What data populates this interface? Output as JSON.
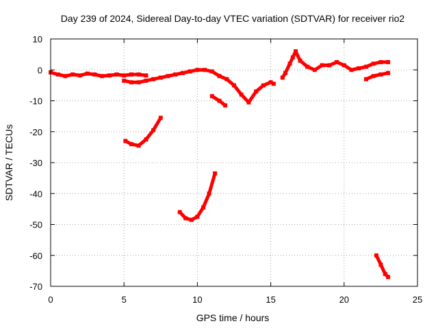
{
  "chart_data": {
    "type": "scatter",
    "title": "Day 239 of 2024, Sidereal Day-to-day VTEC variation (SDTVAR) for receiver rio2",
    "xlabel": "GPS time / hours",
    "ylabel": "SDTVAR / TECUs",
    "xlim": [
      0,
      25
    ],
    "ylim": [
      -70,
      10
    ],
    "xticks": [
      0,
      5,
      10,
      15,
      20,
      25
    ],
    "yticks": [
      10,
      0,
      -10,
      -20,
      -30,
      -40,
      -50,
      -60,
      -70
    ],
    "grid": true,
    "color": "#ff0000",
    "series": [
      {
        "name": "seg-main-1",
        "points": [
          [
            0,
            -0.8
          ],
          [
            0.5,
            -1.5
          ],
          [
            1,
            -2
          ],
          [
            1.5,
            -1.5
          ],
          [
            2,
            -1.8
          ],
          [
            2.5,
            -1.2
          ],
          [
            3,
            -1.5
          ],
          [
            3.5,
            -2
          ],
          [
            4,
            -1.8
          ],
          [
            4.5,
            -1.5
          ],
          [
            5,
            -1.8
          ],
          [
            5.5,
            -1.5
          ],
          [
            6,
            -1.5
          ],
          [
            6.5,
            -1.8
          ]
        ]
      },
      {
        "name": "seg-main-2",
        "points": [
          [
            5,
            -3.5
          ],
          [
            5.5,
            -4
          ],
          [
            6,
            -4
          ],
          [
            6.5,
            -3.5
          ],
          [
            7,
            -3
          ],
          [
            7.5,
            -2.5
          ],
          [
            8,
            -2
          ],
          [
            8.5,
            -1.5
          ],
          [
            9,
            -1
          ],
          [
            9.5,
            -0.5
          ],
          [
            10,
            0
          ],
          [
            10.5,
            0
          ],
          [
            11,
            -0.5
          ],
          [
            11.5,
            -2
          ],
          [
            12,
            -3
          ],
          [
            12.5,
            -5
          ],
          [
            13,
            -8
          ],
          [
            13.5,
            -10.5
          ],
          [
            14,
            -7
          ],
          [
            14.5,
            -5
          ],
          [
            15,
            -4
          ],
          [
            15.2,
            -4.5
          ]
        ]
      },
      {
        "name": "seg-main-3",
        "points": [
          [
            15.8,
            -2.5
          ],
          [
            16,
            -1
          ],
          [
            16.3,
            2
          ],
          [
            16.5,
            4
          ],
          [
            16.7,
            6
          ],
          [
            17,
            3
          ],
          [
            17.5,
            1
          ],
          [
            18,
            0
          ],
          [
            18.5,
            1.5
          ],
          [
            19,
            1.5
          ],
          [
            19.5,
            2.5
          ],
          [
            20,
            1.5
          ],
          [
            20.5,
            0
          ],
          [
            21,
            0.5
          ],
          [
            21.5,
            1
          ],
          [
            22,
            2
          ],
          [
            22.5,
            2.5
          ],
          [
            23,
            2.5
          ]
        ]
      },
      {
        "name": "seg-short-a",
        "points": [
          [
            11,
            -8.5
          ],
          [
            11.5,
            -10
          ],
          [
            11.9,
            -11.5
          ]
        ]
      },
      {
        "name": "seg-short-b",
        "points": [
          [
            21.5,
            -3
          ],
          [
            22,
            -2
          ],
          [
            22.5,
            -1.5
          ],
          [
            23,
            -1
          ]
        ]
      },
      {
        "name": "seg-arc-20",
        "points": [
          [
            5.1,
            -23
          ],
          [
            5.5,
            -24
          ],
          [
            6,
            -24.5
          ],
          [
            6.5,
            -22.5
          ],
          [
            7,
            -19.5
          ],
          [
            7.5,
            -15.5
          ]
        ]
      },
      {
        "name": "seg-arc-45",
        "points": [
          [
            8.8,
            -46
          ],
          [
            9.2,
            -48
          ],
          [
            9.6,
            -48.5
          ],
          [
            10,
            -47.5
          ],
          [
            10.4,
            -44.5
          ],
          [
            10.8,
            -40
          ],
          [
            11.2,
            -33.5
          ]
        ]
      },
      {
        "name": "seg-arc-65",
        "points": [
          [
            22.2,
            -60
          ],
          [
            22.5,
            -63
          ],
          [
            22.8,
            -66
          ],
          [
            23,
            -67
          ]
        ]
      }
    ]
  }
}
